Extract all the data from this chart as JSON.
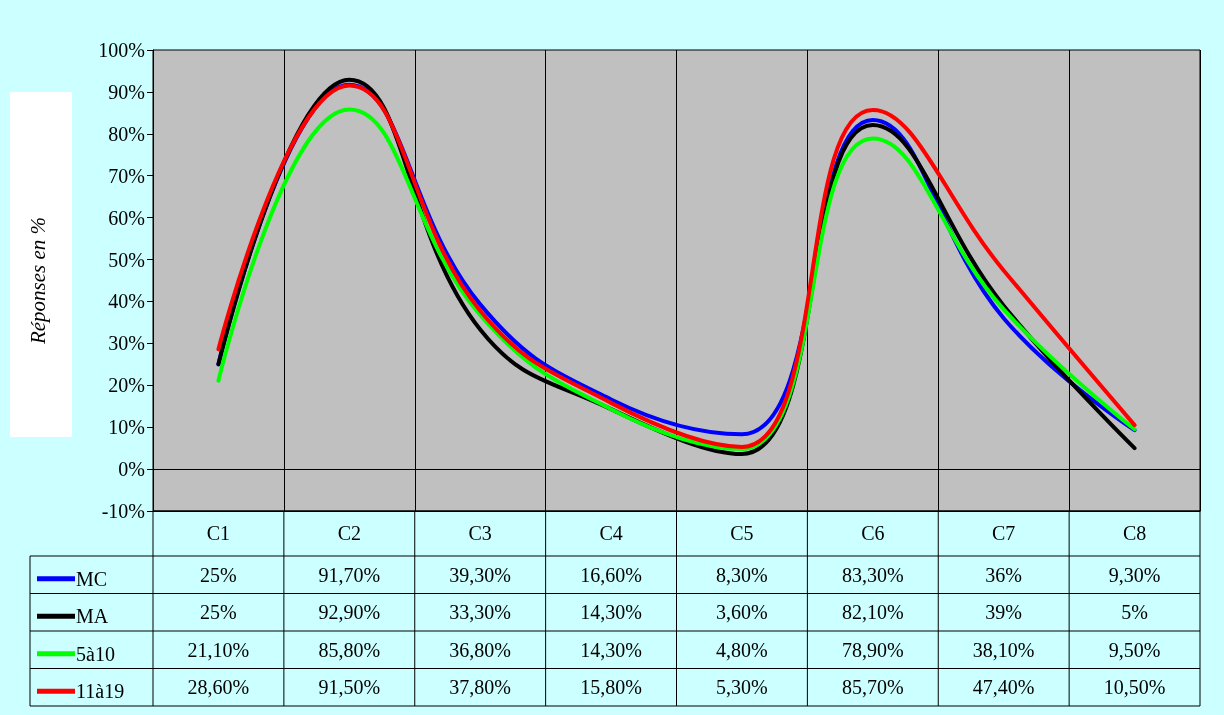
{
  "chart_data": {
    "type": "line",
    "ylabel": "Réponses en %",
    "categories": [
      "C1",
      "C2",
      "C3",
      "C4",
      "C5",
      "C6",
      "C7",
      "C8"
    ],
    "ylim": [
      -10,
      100
    ],
    "yticks": [
      {
        "value": -10,
        "label": "-10%"
      },
      {
        "value": 0,
        "label": "0%"
      },
      {
        "value": 10,
        "label": "10%"
      },
      {
        "value": 20,
        "label": "20%"
      },
      {
        "value": 30,
        "label": "30%"
      },
      {
        "value": 40,
        "label": "40%"
      },
      {
        "value": 50,
        "label": "50%"
      },
      {
        "value": 60,
        "label": "60%"
      },
      {
        "value": 70,
        "label": "70%"
      },
      {
        "value": 80,
        "label": "80%"
      },
      {
        "value": 90,
        "label": "90%"
      },
      {
        "value": 100,
        "label": "100%"
      }
    ],
    "grid": "x",
    "legend": "bottom left",
    "marker": "none",
    "line_style": "solid",
    "ref_lines": [
      {
        "axis": "y",
        "value": 0,
        "color": "#000000"
      }
    ],
    "series": [
      {
        "name": "MC",
        "color": "#0000ff",
        "values": [
          25,
          91.7,
          39.3,
          16.6,
          8.3,
          83.3,
          36,
          9.3
        ],
        "value_labels": [
          "25%",
          "91,70%",
          "39,30%",
          "16,60%",
          "8,30%",
          "83,30%",
          "36%",
          "9,30%"
        ]
      },
      {
        "name": "MA",
        "color": "#000000",
        "values": [
          25,
          92.9,
          33.3,
          14.3,
          3.6,
          82.1,
          39,
          5
        ],
        "value_labels": [
          "25%",
          "92,90%",
          "33,30%",
          "14,30%",
          "3,60%",
          "82,10%",
          "39%",
          "5%"
        ]
      },
      {
        "name": "5à10",
        "color": "#00ff00",
        "values": [
          21.1,
          85.8,
          36.8,
          14.3,
          4.8,
          78.9,
          38.1,
          9.5
        ],
        "value_labels": [
          "21,10%",
          "85,80%",
          "36,80%",
          "14,30%",
          "4,80%",
          "78,90%",
          "38,10%",
          "9,50%"
        ]
      },
      {
        "name": "11à19",
        "color": "#ff0000",
        "values": [
          28.6,
          91.5,
          37.8,
          15.8,
          5.3,
          85.7,
          47.4,
          10.5
        ],
        "value_labels": [
          "28,60%",
          "91,50%",
          "37,80%",
          "15,80%",
          "5,30%",
          "85,70%",
          "47,40%",
          "10,50%"
        ]
      }
    ]
  }
}
